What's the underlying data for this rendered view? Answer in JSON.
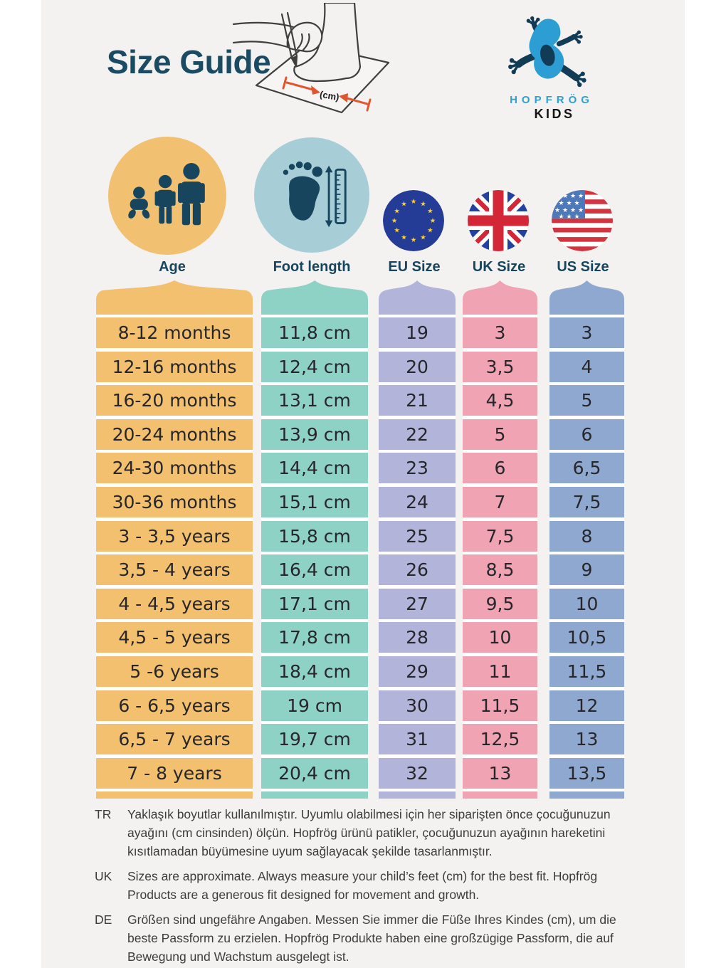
{
  "page": {
    "title": "Size Guide",
    "measure_unit_label": "(cm)",
    "background_color": "#f3f2f0",
    "heading_color": "#1b4a63"
  },
  "brand": {
    "name": "HOPFRÖG",
    "sub": "KIDS",
    "accent_blue": "#2f9fd0",
    "dark_navy": "#17455e"
  },
  "columns": [
    {
      "key": "age",
      "label": "Age",
      "icon": "family-icon",
      "color": "#f2c06e",
      "circle_color": "#f1c071"
    },
    {
      "key": "foot",
      "label": "Foot length",
      "icon": "footprint-ruler-icon",
      "color": "#8ed2c6",
      "circle_color": "#a7ced6"
    },
    {
      "key": "eu",
      "label": "EU Size",
      "icon": "eu-flag-icon",
      "color": "#b2b4da"
    },
    {
      "key": "uk",
      "label": "UK Size",
      "icon": "uk-flag-icon",
      "color": "#f0a3b2"
    },
    {
      "key": "us",
      "label": "US Size",
      "icon": "us-flag-icon",
      "color": "#8fa8cf"
    }
  ],
  "rows": [
    [
      "8-12 months",
      "11,8 cm",
      "19",
      "3",
      "3"
    ],
    [
      "12-16 months",
      "12,4 cm",
      "20",
      "3,5",
      "4"
    ],
    [
      "16-20 months",
      "13,1 cm",
      "21",
      "4,5",
      "5"
    ],
    [
      "20-24 months",
      "13,9 cm",
      "22",
      "5",
      "6"
    ],
    [
      "24-30 months",
      "14,4 cm",
      "23",
      "6",
      "6,5"
    ],
    [
      "30-36 months",
      "15,1 cm",
      "24",
      "7",
      "7,5"
    ],
    [
      "3 - 3,5 years",
      "15,8 cm",
      "25",
      "7,5",
      "8"
    ],
    [
      "3,5 - 4 years",
      "16,4 cm",
      "26",
      "8,5",
      "9"
    ],
    [
      "4 - 4,5 years",
      "17,1 cm",
      "27",
      "9,5",
      "10"
    ],
    [
      "4,5 - 5 years",
      "17,8 cm",
      "28",
      "10",
      "10,5"
    ],
    [
      "5 -6 years",
      "18,4 cm",
      "29",
      "11",
      "11,5"
    ],
    [
      "6 - 6,5 years",
      "19 cm",
      "30",
      "11,5",
      "12"
    ],
    [
      "6,5 - 7 years",
      "19,7 cm",
      "31",
      "12,5",
      "13"
    ],
    [
      "7 - 8 years",
      "20,4 cm",
      "32",
      "13",
      "13,5"
    ]
  ],
  "notes": [
    {
      "lang": "TR",
      "text": "Yaklaşık boyutlar kullanılmıştır. Uyumlu olabilmesi için her siparişten önce çocuğunuzun ayağını (cm cinsinden) ölçün. Hopfrög ürünü patikler, çocuğunuzun ayağının hareketini kısıtlamadan büyümesine uyum sağlayacak şekilde tasarlanmıştır."
    },
    {
      "lang": "UK",
      "text": "Sizes are approximate. Always measure your child’s feet (cm) for the best fit. Hopfrög Products are a generous fit designed for movement and growth."
    },
    {
      "lang": "DE",
      "text": "Größen sind ungefähre Angaben. Messen Sie immer die Füße Ihres Kindes (cm), um die beste Passform zu erzielen. Hopfrög Produkte haben eine großzügige Passform, die auf Bewegung und Wachstum ausgelegt ist."
    }
  ]
}
